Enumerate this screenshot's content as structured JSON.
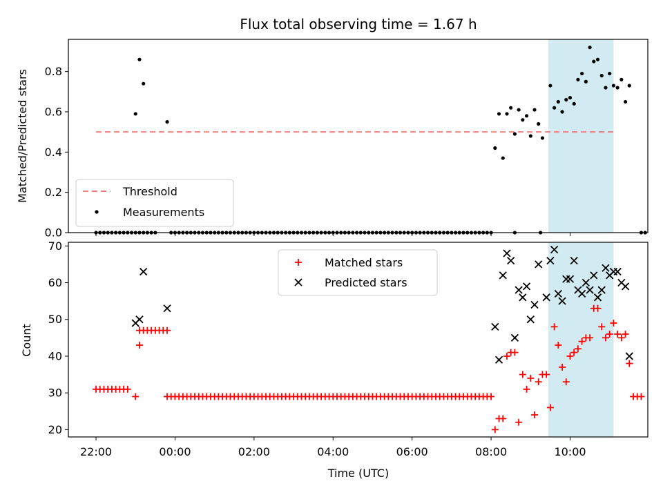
{
  "chart_data": {
    "title": "Flux total observing time = 1.67 h",
    "xlabel": "Time (UTC)",
    "x_ticks": [
      "22:00",
      "00:00",
      "02:00",
      "04:00",
      "06:00",
      "08:00",
      "10:00"
    ],
    "highlight_span": {
      "from": "09:27",
      "to": "11:06",
      "color": "#add8e6"
    },
    "panels": [
      {
        "type": "scatter",
        "ylabel": "Matched/Predicted stars",
        "ylim": [
          0,
          0.96
        ],
        "y_ticks": [
          "0.0",
          "0.2",
          "0.4",
          "0.6",
          "0.8"
        ],
        "legend": {
          "placement": "lower-left",
          "entries": [
            "Threshold",
            "Measurements"
          ]
        },
        "threshold": {
          "name": "Threshold",
          "value": 0.5,
          "from": "22:00",
          "to": "11:06",
          "color": "#f08080"
        },
        "series": [
          {
            "name": "Measurements",
            "marker": "dot",
            "color": "#000000",
            "points": [
              [
                "23:00",
                0.59
              ],
              [
                "23:06",
                0.86
              ],
              [
                "23:12",
                0.74
              ],
              [
                "23:48",
                0.55
              ],
              [
                "08:06",
                0.42
              ],
              [
                "08:12",
                0.59
              ],
              [
                "08:18",
                0.37
              ],
              [
                "08:24",
                0.59
              ],
              [
                "08:30",
                0.62
              ],
              [
                "08:36",
                0.49
              ],
              [
                "08:42",
                0.61
              ],
              [
                "08:48",
                0.56
              ],
              [
                "08:54",
                0.58
              ],
              [
                "09:00",
                0.48
              ],
              [
                "09:06",
                0.61
              ],
              [
                "09:12",
                0.54
              ],
              [
                "09:18",
                0.47
              ],
              [
                "09:30",
                0.73
              ],
              [
                "09:36",
                0.62
              ],
              [
                "09:42",
                0.65
              ],
              [
                "09:48",
                0.6
              ],
              [
                "09:54",
                0.66
              ],
              [
                "10:00",
                0.67
              ],
              [
                "10:06",
                0.64
              ],
              [
                "10:12",
                0.76
              ],
              [
                "10:18",
                0.79
              ],
              [
                "10:24",
                0.75
              ],
              [
                "10:30",
                0.92
              ],
              [
                "10:36",
                0.85
              ],
              [
                "10:42",
                0.86
              ],
              [
                "10:48",
                0.78
              ],
              [
                "10:54",
                0.72
              ],
              [
                "11:00",
                0.79
              ],
              [
                "11:06",
                0.73
              ],
              [
                "11:12",
                0.72
              ],
              [
                "11:18",
                0.76
              ],
              [
                "11:24",
                0.65
              ],
              [
                "11:30",
                0.73
              ]
            ],
            "zero_segments": [
              [
                "22:00",
                "23:30"
              ],
              [
                "23:54",
                "08:00"
              ]
            ],
            "zero_points": [
              "08:36",
              "09:15",
              "11:48",
              "11:54"
            ]
          }
        ]
      },
      {
        "type": "scatter",
        "ylabel": "Count",
        "ylim": [
          18,
          71
        ],
        "y_ticks": [
          "20",
          "30",
          "40",
          "50",
          "60",
          "70"
        ],
        "legend": {
          "placement": "upper-center",
          "entries": [
            "Matched stars",
            "Predicted stars"
          ]
        },
        "series": [
          {
            "name": "Matched stars",
            "marker": "plus",
            "color": "#ff0000",
            "points": [
              [
                "23:00",
                29
              ],
              [
                "23:06",
                43
              ],
              [
                "08:06",
                20
              ],
              [
                "08:12",
                23
              ],
              [
                "08:18",
                23
              ],
              [
                "08:24",
                40
              ],
              [
                "08:30",
                41
              ],
              [
                "08:36",
                41
              ],
              [
                "08:42",
                22
              ],
              [
                "08:48",
                35
              ],
              [
                "08:54",
                31
              ],
              [
                "09:00",
                34
              ],
              [
                "09:06",
                24
              ],
              [
                "09:12",
                33
              ],
              [
                "09:18",
                35
              ],
              [
                "09:24",
                35
              ],
              [
                "09:30",
                26
              ],
              [
                "09:36",
                48
              ],
              [
                "09:42",
                43
              ],
              [
                "09:48",
                37
              ],
              [
                "09:54",
                33
              ],
              [
                "10:00",
                40
              ],
              [
                "10:06",
                41
              ],
              [
                "10:12",
                42
              ],
              [
                "10:18",
                44
              ],
              [
                "10:24",
                45
              ],
              [
                "10:30",
                45
              ],
              [
                "10:36",
                53
              ],
              [
                "10:42",
                53
              ],
              [
                "10:48",
                48
              ],
              [
                "10:54",
                45
              ],
              [
                "11:00",
                46
              ],
              [
                "11:06",
                49
              ],
              [
                "11:12",
                46
              ],
              [
                "11:18",
                45
              ],
              [
                "11:24",
                46
              ],
              [
                "11:30",
                38
              ],
              [
                "11:36",
                29
              ],
              [
                "11:42",
                29
              ],
              [
                "11:48",
                29
              ]
            ],
            "runs": [
              {
                "from": "22:00",
                "to": "22:48",
                "value": 31
              },
              {
                "from": "23:06",
                "to": "23:48",
                "value": 47
              },
              {
                "from": "23:48",
                "to": "08:00",
                "value": 29
              }
            ]
          },
          {
            "name": "Predicted stars",
            "marker": "x",
            "color": "#000000",
            "points": [
              [
                "23:00",
                49
              ],
              [
                "23:06",
                50
              ],
              [
                "23:12",
                63
              ],
              [
                "23:48",
                53
              ],
              [
                "08:06",
                48
              ],
              [
                "08:12",
                39
              ],
              [
                "08:18",
                62
              ],
              [
                "08:24",
                68
              ],
              [
                "08:30",
                66
              ],
              [
                "08:36",
                45
              ],
              [
                "08:42",
                58
              ],
              [
                "08:48",
                56
              ],
              [
                "08:54",
                59
              ],
              [
                "09:00",
                50
              ],
              [
                "09:06",
                54
              ],
              [
                "09:12",
                65
              ],
              [
                "09:24",
                56
              ],
              [
                "09:30",
                66
              ],
              [
                "09:36",
                69
              ],
              [
                "09:42",
                57
              ],
              [
                "09:48",
                55
              ],
              [
                "09:54",
                61
              ],
              [
                "10:00",
                61
              ],
              [
                "10:06",
                66
              ],
              [
                "10:12",
                58
              ],
              [
                "10:18",
                57
              ],
              [
                "10:24",
                60
              ],
              [
                "10:30",
                58
              ],
              [
                "10:36",
                62
              ],
              [
                "10:42",
                56
              ],
              [
                "10:48",
                58
              ],
              [
                "10:54",
                64
              ],
              [
                "11:00",
                62
              ],
              [
                "11:06",
                63
              ],
              [
                "11:12",
                63
              ],
              [
                "11:18",
                60
              ],
              [
                "11:24",
                59
              ],
              [
                "11:30",
                40
              ]
            ]
          }
        ]
      }
    ]
  }
}
